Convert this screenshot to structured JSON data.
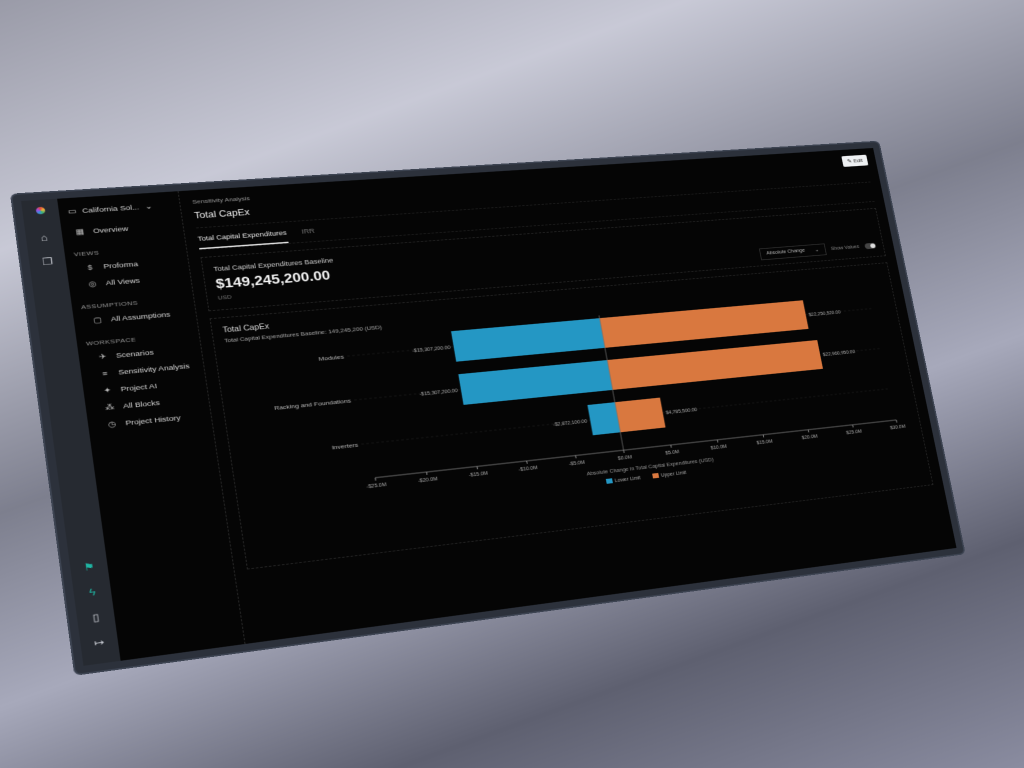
{
  "sidebar_rail": {
    "top_icons": [
      "logo-icon",
      "home-icon",
      "copy-icon"
    ],
    "bottom_icons": [
      "flag-icon",
      "lightning-icon",
      "book-icon",
      "logout-icon"
    ],
    "accent": "#1fb5a3"
  },
  "nav": {
    "project": "California Sol...",
    "overview": "Overview",
    "sections": [
      {
        "title": "VIEWS",
        "items": [
          {
            "label": "Proforma",
            "icon": "dollar-icon"
          },
          {
            "label": "All Views",
            "icon": "views-icon"
          }
        ]
      },
      {
        "title": "ASSUMPTIONS",
        "items": [
          {
            "label": "All Assumptions",
            "icon": "document-icon"
          }
        ]
      },
      {
        "title": "WORKSPACE",
        "items": [
          {
            "label": "Scenarios",
            "icon": "telescope-icon"
          },
          {
            "label": "Sensitivity Analysis",
            "icon": "filter-icon"
          },
          {
            "label": "Project AI",
            "icon": "sparkle-icon"
          },
          {
            "label": "All Blocks",
            "icon": "blocks-icon"
          },
          {
            "label": "Project History",
            "icon": "clock-icon"
          }
        ]
      }
    ]
  },
  "header": {
    "breadcrumb": "Sensitivity Analysis",
    "title": "Total CapEx",
    "edit_label": "Edit"
  },
  "tabs": [
    {
      "label": "Total Capital Expenditures",
      "active": true
    },
    {
      "label": "IRR",
      "active": false
    }
  ],
  "baseline": {
    "label": "Total Capital Expenditures Baseline",
    "value": "$149,245,200.00",
    "unit": "USD"
  },
  "controls": {
    "mode": "Absolute Change",
    "show_values_label": "Show Values",
    "show_values": true
  },
  "chart_card": {
    "title": "Total CapEx",
    "subtitle": "Total Capital Expenditures Baseline: 149,245,200 (USD)"
  },
  "chart_data": {
    "type": "bar",
    "orientation": "horizontal tornado",
    "categories": [
      "Modules",
      "Racking and Foundations",
      "Inverters"
    ],
    "series": [
      {
        "name": "Lower Limit",
        "color": "#2497c4",
        "values": [
          -15307200,
          -15307200,
          -2872100
        ],
        "labels": [
          "-$15,307,200.00",
          "-$15,307,200.00",
          "-$2,872,100.00"
        ]
      },
      {
        "name": "Upper Limit",
        "color": "#d9783f",
        "values": [
          22250520,
          22960950,
          4785500
        ],
        "labels": [
          "$22,250,520.00",
          "$22,960,950.00",
          "$4,785,500.00"
        ]
      }
    ],
    "xlim": [
      -25000000,
      30000000
    ],
    "xticks": [
      -25000000,
      -20000000,
      -15000000,
      -10000000,
      -5000000,
      0,
      5000000,
      10000000,
      15000000,
      20000000,
      25000000,
      30000000
    ],
    "xtick_labels": [
      "-$25.0M",
      "-$20.0M",
      "-$15.0M",
      "-$10.0M",
      "-$5.0M",
      "$0.0M",
      "$5.0M",
      "$10.0M",
      "$15.0M",
      "$20.0M",
      "$25.0M",
      "$30.0M"
    ],
    "xlabel": "Absolute Change in Total Capital Expenditures (USD)",
    "legend_position": "bottom"
  }
}
